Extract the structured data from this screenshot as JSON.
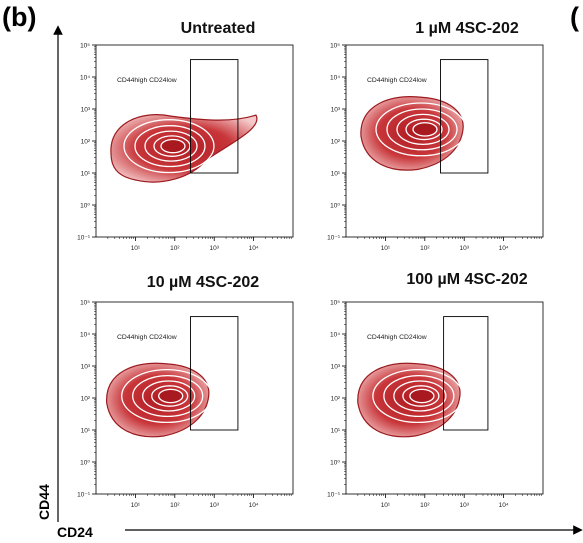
{
  "figure": {
    "panel_letter": "(b)",
    "next_panel_fragment": "(",
    "y_axis_title": "CD44",
    "x_axis_title": "CD24"
  },
  "chart_data": [
    {
      "type": "contour",
      "title": "Untreated",
      "gate_label": "CD44high CD24low",
      "x_scale": "log",
      "y_scale": "log",
      "xlim": [
        1,
        100000
      ],
      "ylim": [
        0.1,
        100000
      ],
      "x_ticks": [
        "10¹",
        "10²",
        "10³",
        "10⁴"
      ],
      "y_ticks": [
        "10⁻¹",
        "10⁰",
        "10¹",
        "10²",
        "10³",
        "10⁴",
        "10⁵"
      ],
      "gate": {
        "x": [
          250,
          4000
        ],
        "y": [
          10,
          35000
        ]
      },
      "population_center": {
        "x": 80,
        "y": 60
      }
    },
    {
      "type": "contour",
      "title": "1 µM 4SC-202",
      "gate_label": "CD44high CD24low",
      "x_scale": "log",
      "y_scale": "log",
      "xlim": [
        1,
        100000
      ],
      "ylim": [
        0.1,
        100000
      ],
      "x_ticks": [
        "10¹",
        "10²",
        "10³",
        "10⁴"
      ],
      "y_ticks": [
        "10⁻¹",
        "10⁰",
        "10¹",
        "10²",
        "10³",
        "10⁴",
        "10⁵"
      ],
      "gate": {
        "x": [
          250,
          4000
        ],
        "y": [
          10,
          35000
        ]
      },
      "population_center": {
        "x": 90,
        "y": 200
      }
    },
    {
      "type": "contour",
      "title": "10 µM 4SC-202",
      "gate_label": "CD44high CD24low",
      "x_scale": "log",
      "y_scale": "log",
      "xlim": [
        1,
        100000
      ],
      "ylim": [
        0.1,
        100000
      ],
      "x_ticks": [
        "10¹",
        "10²",
        "10³",
        "10⁴"
      ],
      "y_ticks": [
        "10⁻¹",
        "10⁰",
        "10¹",
        "10²",
        "10³",
        "10⁴",
        "10⁵"
      ],
      "gate": {
        "x": [
          250,
          4000
        ],
        "y": [
          10,
          35000
        ]
      },
      "population_center": {
        "x": 70,
        "y": 100
      }
    },
    {
      "type": "contour",
      "title": "100 µM 4SC-202",
      "gate_label": "CD44high CD24low",
      "x_scale": "log",
      "y_scale": "log",
      "xlim": [
        1,
        100000
      ],
      "ylim": [
        0.1,
        100000
      ],
      "x_ticks": [
        "10¹",
        "10²",
        "10³",
        "10⁴"
      ],
      "y_ticks": [
        "10⁻¹",
        "10⁰",
        "10¹",
        "10²",
        "10³",
        "10⁴",
        "10⁵"
      ],
      "gate": {
        "x": [
          300,
          4000
        ],
        "y": [
          10,
          35000
        ]
      },
      "population_center": {
        "x": 75,
        "y": 100
      }
    }
  ],
  "colors": {
    "contour_fill_dark": "#b01c22",
    "contour_fill_light": "#f4c9c9",
    "contour_line": "#ffffff"
  }
}
